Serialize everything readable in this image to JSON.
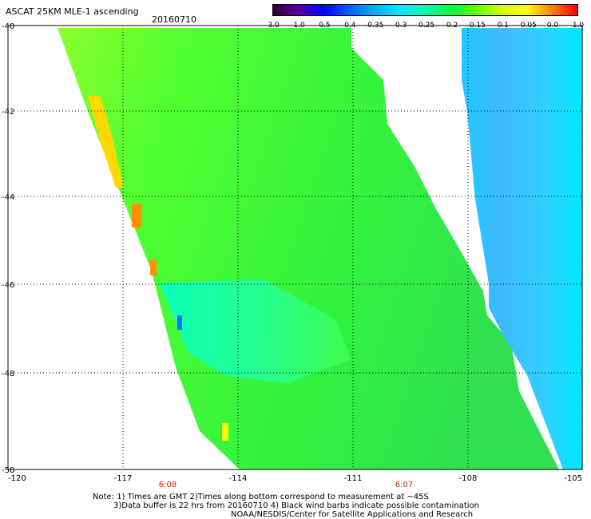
{
  "header": {
    "title": "ASCAT 25KM MLE-1 ascending",
    "date": "20160710"
  },
  "colorbar": {
    "ticks": [
      "-3.0",
      "-1.0",
      "-0.5",
      "-0.4",
      "-0.35",
      "-0.3",
      "-0.25",
      "-0.2",
      "-0.15",
      "-0.1",
      "-0.05",
      "0.0",
      "1.0"
    ],
    "colors": [
      "#300030",
      "#5a00a0",
      "#0000ff",
      "#0060ff",
      "#00b0ff",
      "#00e8ff",
      "#00ffb0",
      "#00ff40",
      "#60ff00",
      "#d0ff00",
      "#ffff00",
      "#ff8000",
      "#ff0000"
    ]
  },
  "map": {
    "lat_labels": [
      "-40",
      "-42",
      "-44",
      "-46",
      "-48",
      "-50"
    ],
    "lon_labels": [
      "-120",
      "-117",
      "-114",
      "-111",
      "-108",
      "-105"
    ],
    "time_labels": [
      "6:08",
      "6:07"
    ]
  },
  "notes": {
    "line1": "Note: 1) Times are GMT 2)Times along bottom correspond to measurement at ~45S",
    "line2": "3)Data buffer is 22 hrs from 20160710 4) Black wind barbs indicate possible contamination",
    "line3": "NOAA/NESDIS/Center for Satellite Applications and Research"
  }
}
